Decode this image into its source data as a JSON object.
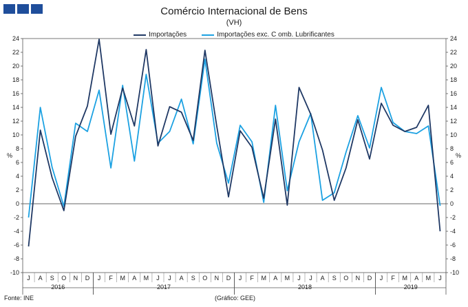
{
  "chart_data": {
    "type": "line",
    "title": "Comércio Internacional de Bens",
    "subtitle": "(VH)",
    "ylabel_left": "%",
    "ylabel_right": "%",
    "ylim": [
      -10,
      24
    ],
    "yticks": [
      -10,
      -8,
      -6,
      -4,
      -2,
      0,
      2,
      4,
      6,
      8,
      10,
      12,
      14,
      16,
      18,
      20,
      22,
      24
    ],
    "categories": [
      "J",
      "A",
      "S",
      "O",
      "N",
      "D",
      "J",
      "F",
      "M",
      "A",
      "M",
      "J",
      "J",
      "A",
      "S",
      "O",
      "N",
      "D",
      "J",
      "F",
      "M",
      "A",
      "M",
      "J",
      "J",
      "A",
      "S",
      "O",
      "N",
      "D",
      "J",
      "F",
      "M",
      "A",
      "M",
      "J"
    ],
    "year_labels": [
      {
        "label": "2016",
        "start": 0,
        "end": 5
      },
      {
        "label": "2017",
        "start": 6,
        "end": 17
      },
      {
        "label": "2018",
        "start": 18,
        "end": 29
      },
      {
        "label": "2019",
        "start": 30,
        "end": 35
      }
    ],
    "legend_placement": "top-center",
    "grid": false,
    "series": [
      {
        "name": "Importações",
        "color": "#1f3864",
        "values": [
          -6.2,
          10.7,
          3.8,
          -1.0,
          9.8,
          14.2,
          23.9,
          10.1,
          16.8,
          11.3,
          22.4,
          8.4,
          14.1,
          13.3,
          9.2,
          22.3,
          11.3,
          1.0,
          10.6,
          8.2,
          0.8,
          12.3,
          -0.2,
          16.9,
          13.0,
          7.8,
          0.5,
          5.2,
          12.2,
          6.5,
          14.6,
          11.4,
          10.5,
          11.1,
          14.3,
          -4.0
        ]
      },
      {
        "name": "Importações exc. C omb. Lubrificantes",
        "color": "#1ba1e2",
        "values": [
          -2.0,
          14.0,
          5.3,
          -0.4,
          11.7,
          10.5,
          16.5,
          5.2,
          17.2,
          6.2,
          18.8,
          8.8,
          10.5,
          15.2,
          8.7,
          21.0,
          8.8,
          3.0,
          11.4,
          9.0,
          0.2,
          14.3,
          1.9,
          9.0,
          13.1,
          0.5,
          1.6,
          7.5,
          12.8,
          8.1,
          16.9,
          11.8,
          10.5,
          10.2,
          11.3,
          -0.3
        ]
      }
    ]
  },
  "header": {
    "title": "Comércio Internacional de Bens",
    "subtitle": "(VH)"
  },
  "legend": {
    "items": [
      {
        "label": "Importações",
        "color": "#1f3864"
      },
      {
        "label": "Importações exc. C omb. Lubrificantes",
        "color": "#1ba1e2"
      }
    ]
  },
  "footer": {
    "source": "Fonte: INE",
    "credit": "(Gráfico: GEE)"
  }
}
